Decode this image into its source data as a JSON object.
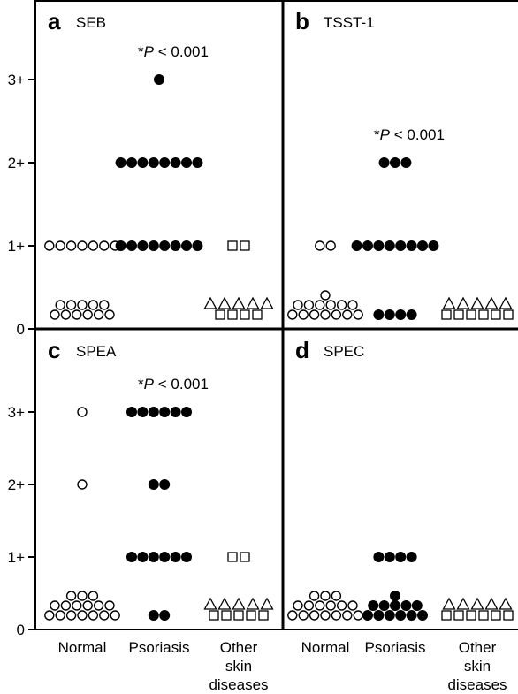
{
  "chart_data": {
    "type": "scatter",
    "y_tick_labels": [
      "0",
      "1+",
      "2+",
      "3+"
    ],
    "categories": [
      {
        "id": "normal",
        "label_lines": [
          "Normal"
        ]
      },
      {
        "id": "psoriasis",
        "label_lines": [
          "Psoriasis"
        ]
      },
      {
        "id": "other",
        "label_lines": [
          "Other",
          "skin",
          "diseases"
        ]
      }
    ],
    "ylim": [
      0,
      3.4
    ],
    "marker_legend": {
      "open-circle": "Normal",
      "filled-circle": "Psoriasis",
      "open-triangle": "Other skin diseases",
      "open-square": "Other skin diseases"
    },
    "panels": [
      {
        "letter": "a",
        "title": "SEB",
        "annotation": {
          "star": "*",
          "italic": "P",
          "rest": " < 0.001"
        },
        "groups": [
          {
            "category": "normal",
            "marker": "open-circle",
            "value": 1,
            "count": 7
          },
          {
            "category": "normal",
            "marker": "open-circle",
            "value": 0,
            "count": 11
          },
          {
            "category": "psoriasis",
            "marker": "filled-circle",
            "value": 3,
            "count": 1
          },
          {
            "category": "psoriasis",
            "marker": "filled-circle",
            "value": 2,
            "count": 8
          },
          {
            "category": "psoriasis",
            "marker": "filled-circle",
            "value": 1,
            "count": 8
          },
          {
            "category": "other",
            "marker": "open-square",
            "value": 1,
            "count": 2
          },
          {
            "category": "other",
            "marker": "open-triangle",
            "value": 0,
            "count": 5
          },
          {
            "category": "other",
            "marker": "open-square",
            "value": 0,
            "count": 4
          }
        ]
      },
      {
        "letter": "b",
        "title": "TSST-1",
        "annotation": {
          "star": "*",
          "italic": "P",
          "rest": " < 0.001"
        },
        "groups": [
          {
            "category": "normal",
            "marker": "open-circle",
            "value": 1,
            "count": 2
          },
          {
            "category": "normal",
            "marker": "open-circle",
            "value": 0,
            "count": 14
          },
          {
            "category": "psoriasis",
            "marker": "filled-circle",
            "value": 2,
            "count": 3
          },
          {
            "category": "psoriasis",
            "marker": "filled-circle",
            "value": 1,
            "count": 8
          },
          {
            "category": "psoriasis",
            "marker": "filled-circle",
            "value": 0,
            "count": 4
          },
          {
            "category": "other",
            "marker": "open-triangle",
            "value": 0,
            "count": 5
          },
          {
            "category": "other",
            "marker": "open-square",
            "value": 0,
            "count": 6
          }
        ]
      },
      {
        "letter": "c",
        "title": "SPEA",
        "annotation": {
          "star": "*",
          "italic": "P",
          "rest": " < 0.001"
        },
        "groups": [
          {
            "category": "normal",
            "marker": "open-circle",
            "value": 3,
            "count": 1
          },
          {
            "category": "normal",
            "marker": "open-circle",
            "value": 2,
            "count": 1
          },
          {
            "category": "normal",
            "marker": "open-circle",
            "value": 0,
            "count": 16
          },
          {
            "category": "psoriasis",
            "marker": "filled-circle",
            "value": 3,
            "count": 6
          },
          {
            "category": "psoriasis",
            "marker": "filled-circle",
            "value": 2,
            "count": 2
          },
          {
            "category": "psoriasis",
            "marker": "filled-circle",
            "value": 1,
            "count": 6
          },
          {
            "category": "psoriasis",
            "marker": "filled-circle",
            "value": 0,
            "count": 2
          },
          {
            "category": "other",
            "marker": "open-square",
            "value": 1,
            "count": 2
          },
          {
            "category": "other",
            "marker": "open-triangle",
            "value": 0,
            "count": 5
          },
          {
            "category": "other",
            "marker": "open-square",
            "value": 0,
            "count": 5
          }
        ]
      },
      {
        "letter": "d",
        "title": "SPEC",
        "annotation": null,
        "groups": [
          {
            "category": "normal",
            "marker": "open-circle",
            "value": 0,
            "count": 16
          },
          {
            "category": "psoriasis",
            "marker": "filled-circle",
            "value": 1,
            "count": 4
          },
          {
            "category": "psoriasis",
            "marker": "filled-circle",
            "value": 0,
            "count": 12
          },
          {
            "category": "other",
            "marker": "open-triangle",
            "value": 0,
            "count": 5
          },
          {
            "category": "other",
            "marker": "open-square",
            "value": 0,
            "count": 6
          }
        ]
      }
    ]
  }
}
